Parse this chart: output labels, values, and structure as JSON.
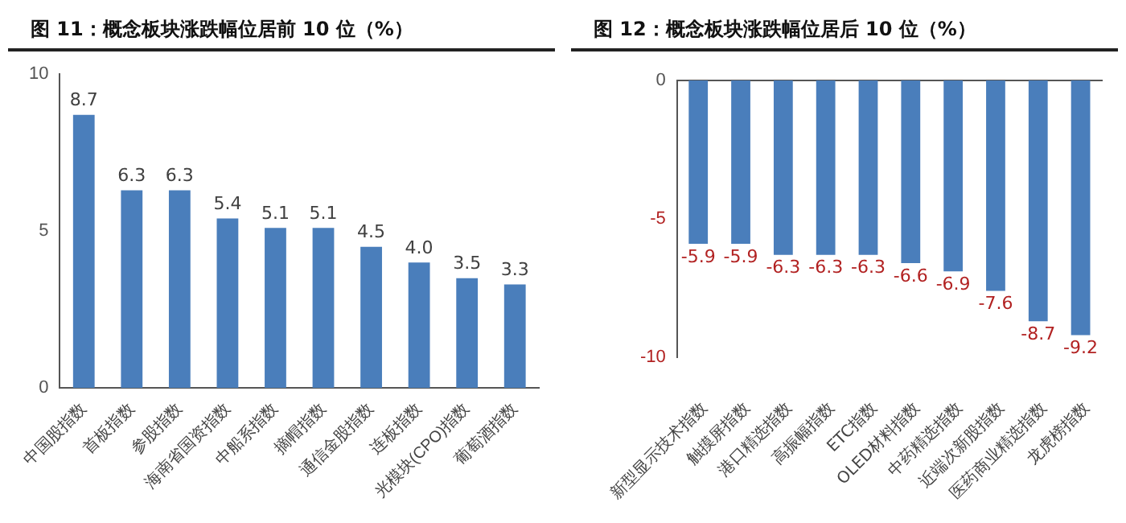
{
  "chart_data": [
    {
      "type": "bar",
      "title": "图 11：概念板块涨跌幅位居前 10 位（%）",
      "categories": [
        "中国股指数",
        "首板指数",
        "参股指数",
        "海南省国资指数",
        "中船系指数",
        "摘帽指数",
        "通信金股指数",
        "连板指数",
        "光模块(CPO)指数",
        "葡萄酒指数"
      ],
      "values": [
        8.7,
        6.3,
        6.3,
        5.4,
        5.1,
        5.1,
        4.5,
        4.0,
        3.5,
        3.3
      ],
      "value_labels": [
        "8.7",
        "6.3",
        "6.3",
        "5.4",
        "5.1",
        "5.1",
        "4.5",
        "4.0",
        "3.5",
        "3.3"
      ],
      "color": "#4a7ebb",
      "ylim": [
        0,
        10
      ],
      "yticks": [
        0,
        5,
        10
      ],
      "grid": false,
      "data_labels": true
    },
    {
      "type": "bar",
      "title": "图 12：概念板块涨跌幅位居后 10 位（%）",
      "categories": [
        "新型显示技术指数",
        "触摸屏指数",
        "港口精选指数",
        "高振幅指数",
        "ETC指数",
        "OLED材料指数",
        "中药精选指数",
        "近端次新股指数",
        "医药商业精选指数",
        "龙虎榜指数"
      ],
      "values": [
        -5.9,
        -5.9,
        -6.3,
        -6.3,
        -6.3,
        -6.6,
        -6.9,
        -7.6,
        -8.7,
        -9.2
      ],
      "color": "#4a7ebb",
      "ylim": [
        -10,
        0
      ],
      "yticks": [
        -10,
        -5,
        0
      ],
      "grid": false,
      "data_labels": true
    }
  ]
}
